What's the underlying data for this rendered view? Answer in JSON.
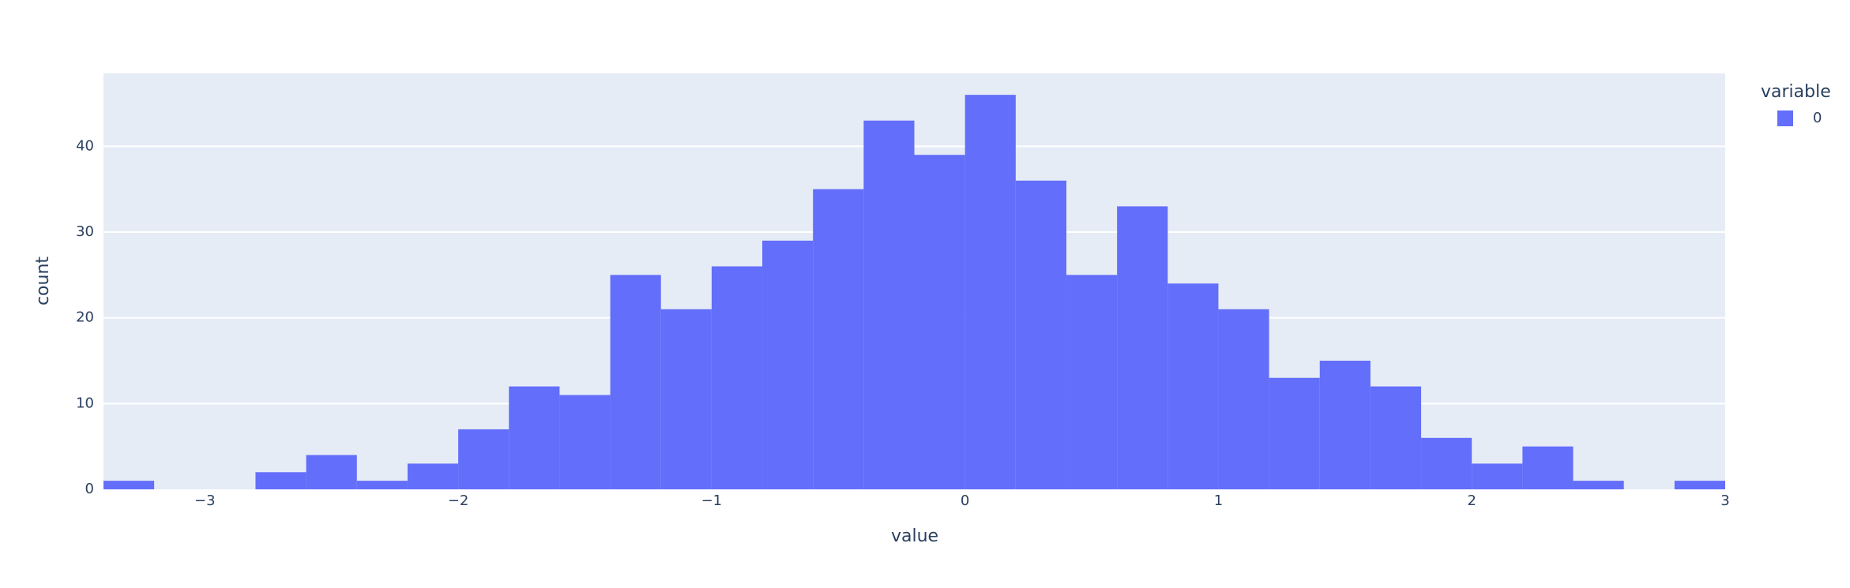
{
  "chart_data": {
    "type": "histogram",
    "x_label": "value",
    "y_label": "count",
    "legend_title": "variable",
    "legend": "top-right-outside",
    "bins": [
      -3.4,
      -3.2,
      -3.0,
      -2.8,
      -2.6,
      -2.4,
      -2.2,
      -2.0,
      -1.8,
      -1.6,
      -1.4,
      -1.2,
      -1.0,
      -0.8,
      -0.6,
      -0.4,
      -0.2,
      0,
      0.2,
      0.4,
      0.6,
      0.8,
      1.0,
      1.2,
      1.4,
      1.6,
      1.8,
      2.0,
      2.2,
      2.4,
      2.6,
      2.8,
      3.0
    ],
    "series": [
      {
        "name": "0",
        "color": "#636efa",
        "values": [
          1,
          0,
          0,
          2,
          4,
          1,
          3,
          7,
          12,
          11,
          25,
          21,
          26,
          29,
          35,
          43,
          39,
          46,
          36,
          25,
          33,
          24,
          21,
          13,
          15,
          12,
          6,
          3,
          5,
          1,
          0,
          1
        ]
      }
    ],
    "xlim": [
      -3.4,
      3.0
    ],
    "xticks": [
      {
        "value": -3,
        "label": "−3"
      },
      {
        "value": -2,
        "label": "−2"
      },
      {
        "value": -1,
        "label": "−1"
      },
      0,
      1,
      2,
      3
    ],
    "ylim": [
      0,
      48.5
    ],
    "yticks": [
      0,
      10,
      20,
      30,
      40
    ],
    "grid": true
  }
}
